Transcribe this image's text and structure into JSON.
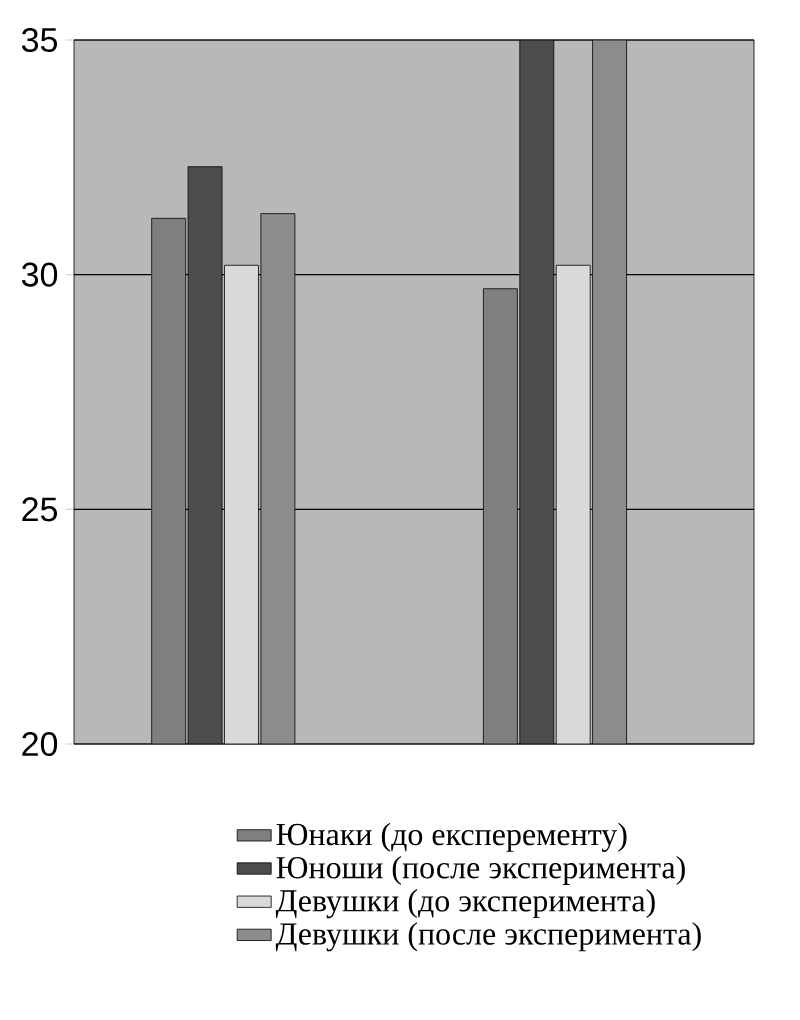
{
  "chart_data": {
    "type": "bar",
    "categories": [
      null,
      null
    ],
    "series": [
      {
        "name": "Юнаки (до експеременту)",
        "color": "#7f7f7f",
        "values": [
          31.2,
          29.7
        ]
      },
      {
        "name": "Юноши (после эксперимента)",
        "color": "#4d4d4d",
        "values": [
          32.3,
          35
        ]
      },
      {
        "name": "Девушки (до эксперимента)",
        "color": "#dadada",
        "values": [
          30.2,
          30.2
        ]
      },
      {
        "name": "Девушки (после эксперимента)",
        "color": "#8c8c8c",
        "values": [
          31.3,
          35
        ]
      }
    ],
    "ylim": [
      20,
      35
    ],
    "yticks": [
      20,
      25,
      30,
      35
    ],
    "grid": "y",
    "legend": "bottom"
  }
}
